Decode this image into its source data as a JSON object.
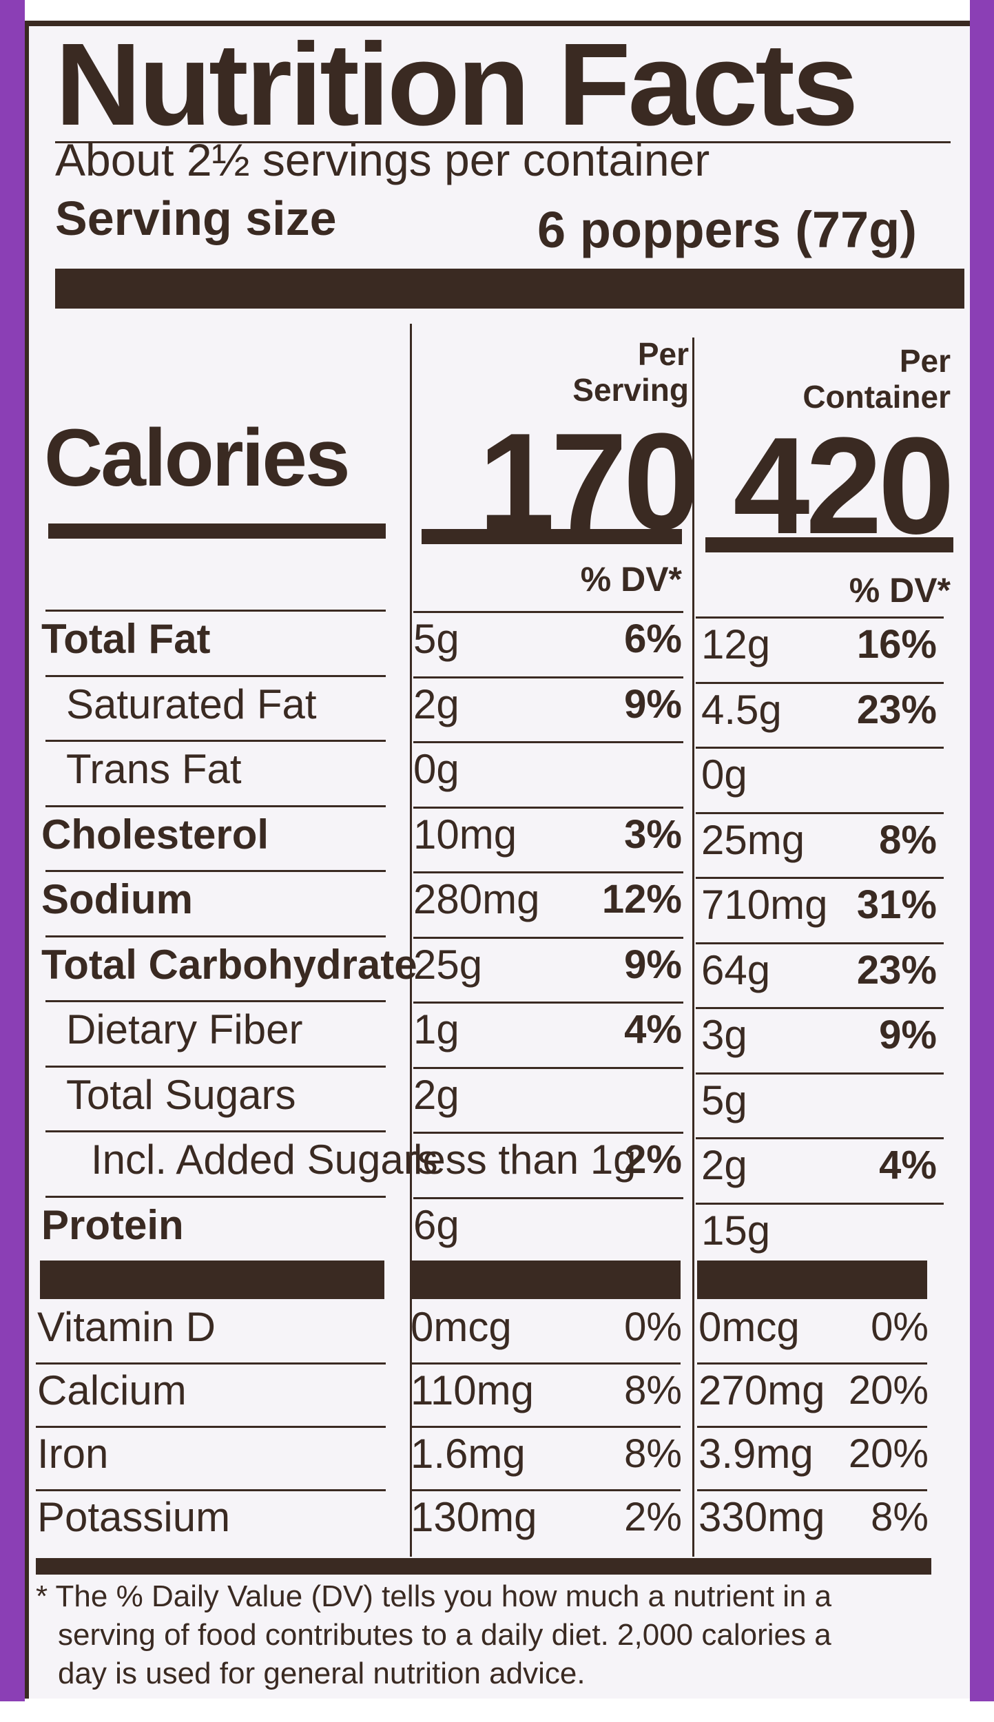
{
  "label": {
    "title": "Nutrition Facts",
    "servings_per_container": "About 2½ servings per container",
    "serving_size_label": "Serving size",
    "serving_size_value": "6 poppers (77g)",
    "columns": [
      {
        "head_line1": "Per",
        "head_line2": "Serving",
        "calories": "170",
        "dv_head": "% DV*"
      },
      {
        "head_line1": "Per",
        "head_line2": "Container",
        "calories": "420",
        "dv_head": "% DV*"
      }
    ],
    "calories_label": "Calories",
    "nutrients": [
      {
        "name": "Total Fat",
        "bold": true,
        "indent": 0,
        "serving": {
          "amt": "5g",
          "pct": "6%"
        },
        "container": {
          "amt": "12g",
          "pct": "16%"
        }
      },
      {
        "name": "Saturated Fat",
        "bold": false,
        "indent": 1,
        "serving": {
          "amt": "2g",
          "pct": "9%"
        },
        "container": {
          "amt": "4.5g",
          "pct": "23%"
        }
      },
      {
        "name": "Trans Fat",
        "bold": false,
        "indent": 1,
        "serving": {
          "amt": "0g",
          "pct": ""
        },
        "container": {
          "amt": "0g",
          "pct": ""
        }
      },
      {
        "name": "Cholesterol",
        "bold": true,
        "indent": 0,
        "serving": {
          "amt": "10mg",
          "pct": "3%"
        },
        "container": {
          "amt": "25mg",
          "pct": "8%"
        }
      },
      {
        "name": "Sodium",
        "bold": true,
        "indent": 0,
        "serving": {
          "amt": "280mg",
          "pct": "12%"
        },
        "container": {
          "amt": "710mg",
          "pct": "31%"
        }
      },
      {
        "name": "Total Carbohydrate",
        "bold": true,
        "indent": 0,
        "serving": {
          "amt": "25g",
          "pct": "9%"
        },
        "container": {
          "amt": "64g",
          "pct": "23%"
        }
      },
      {
        "name": "Dietary Fiber",
        "bold": false,
        "indent": 1,
        "serving": {
          "amt": "1g",
          "pct": "4%"
        },
        "container": {
          "amt": "3g",
          "pct": "9%"
        }
      },
      {
        "name": "Total Sugars",
        "bold": false,
        "indent": 1,
        "serving": {
          "amt": "2g",
          "pct": ""
        },
        "container": {
          "amt": "5g",
          "pct": ""
        }
      },
      {
        "name": "Incl. Added Sugars",
        "bold": false,
        "indent": 2,
        "serving": {
          "amt": "less than 1g",
          "pct": "2%"
        },
        "container": {
          "amt": "2g",
          "pct": "4%"
        }
      },
      {
        "name": "Protein",
        "bold": true,
        "indent": 0,
        "serving": {
          "amt": "6g",
          "pct": ""
        },
        "container": {
          "amt": "15g",
          "pct": ""
        }
      }
    ],
    "vitamins": [
      {
        "name": "Vitamin D",
        "serving": {
          "amt": "0mcg",
          "pct": "0%"
        },
        "container": {
          "amt": "0mcg",
          "pct": "0%"
        }
      },
      {
        "name": "Calcium",
        "serving": {
          "amt": "110mg",
          "pct": "8%"
        },
        "container": {
          "amt": "270mg",
          "pct": "20%"
        }
      },
      {
        "name": "Iron",
        "serving": {
          "amt": "1.6mg",
          "pct": "8%"
        },
        "container": {
          "amt": "3.9mg",
          "pct": "20%"
        }
      },
      {
        "name": "Potassium",
        "serving": {
          "amt": "130mg",
          "pct": "2%"
        },
        "container": {
          "amt": "330mg",
          "pct": "8%"
        }
      }
    ],
    "footnote": [
      "* The % Daily Value (DV) tells you how much a nutrient in a",
      "serving of food contributes to a daily diet. 2,000 calories a",
      "day is used for general nutrition advice."
    ],
    "colors": {
      "ink": "#3a2a22",
      "panel": "#f6f4f8",
      "package_purple": "#8b3fb5"
    }
  }
}
